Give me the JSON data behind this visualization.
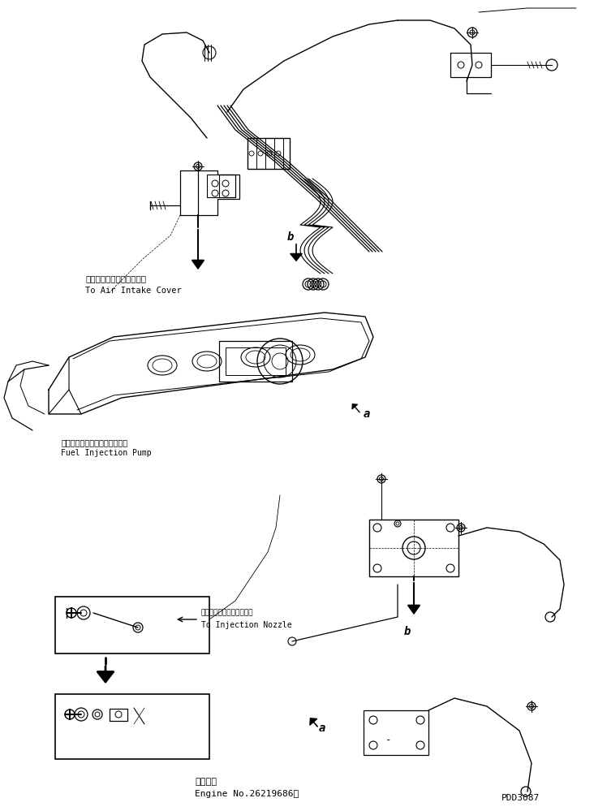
{
  "bg_color": "#ffffff",
  "line_color": "#000000",
  "fig_width": 7.32,
  "fig_height": 9.99,
  "dpi": 100,
  "footer_text1": "適用号機",
  "footer_text2": "Engine No.26219686～",
  "footer_code": "PDD3087",
  "label_air1": "エアーインテークカバーヘ",
  "label_air2": "To Air Intake Cover",
  "label_pump1": "フェルインジェクションポンプ",
  "label_pump2": "Fuel Injection Pump",
  "label_nozzle1": "インジェクションノズルヘ",
  "label_nozzle2": "To Injection Nozzle"
}
